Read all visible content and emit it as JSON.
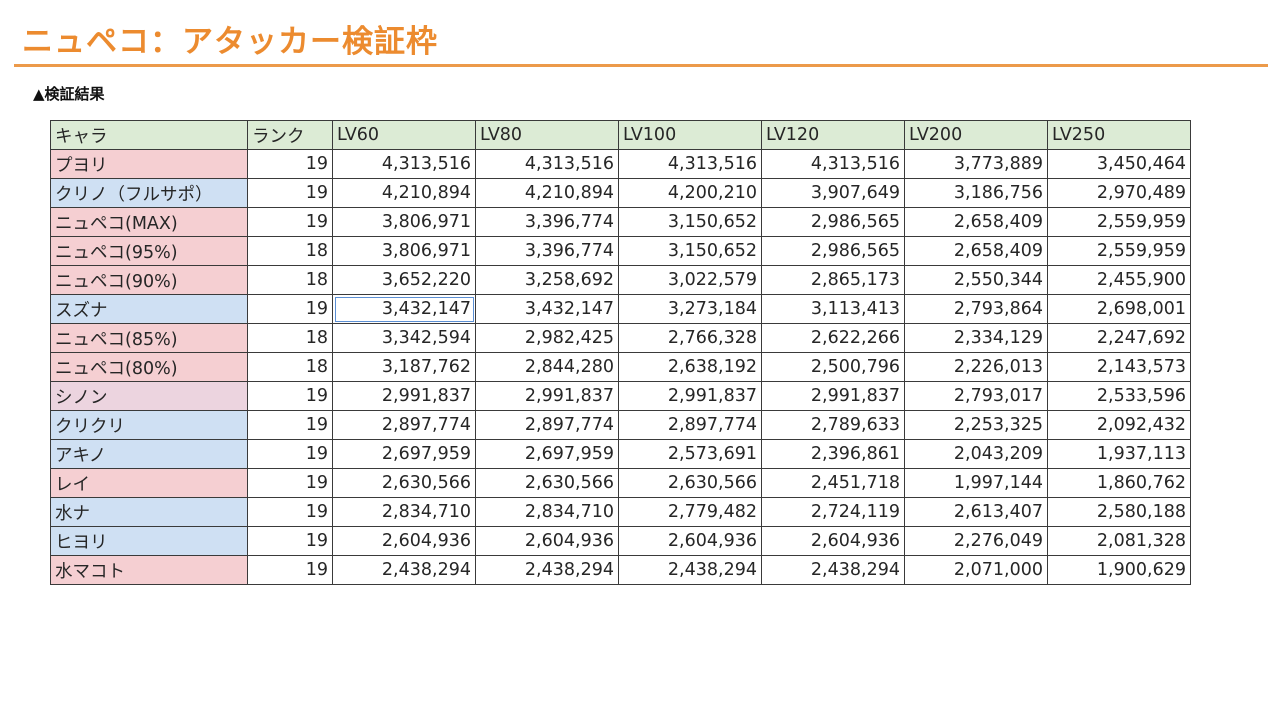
{
  "page": {
    "title": "ニュペコ：アタッカー検証枠",
    "section_label": "▲検証結果"
  },
  "colors": {
    "title": "#ec8b2f",
    "header_bg": "#dcebd5",
    "pink": "#f5cfd2",
    "blue": "#cfe0f3",
    "mauve": "#ecd4df"
  },
  "table": {
    "columns": [
      "キャラ",
      "ランク",
      "LV60",
      "LV80",
      "LV100",
      "LV120",
      "LV200",
      "LV250"
    ],
    "rows": [
      {
        "name": "プヨリ",
        "color": "pink",
        "cells": [
          "19",
          "4,313,516",
          "4,313,516",
          "4,313,516",
          "4,313,516",
          "3,773,889",
          "3,450,464"
        ]
      },
      {
        "name": "クリノ（フルサポ）",
        "color": "blue",
        "cells": [
          "19",
          "4,210,894",
          "4,210,894",
          "4,200,210",
          "3,907,649",
          "3,186,756",
          "2,970,489"
        ]
      },
      {
        "name": "ニュペコ(MAX)",
        "color": "pink",
        "cells": [
          "19",
          "3,806,971",
          "3,396,774",
          "3,150,652",
          "2,986,565",
          "2,658,409",
          "2,559,959"
        ]
      },
      {
        "name": "ニュペコ(95%)",
        "color": "pink",
        "cells": [
          "18",
          "3,806,971",
          "3,396,774",
          "3,150,652",
          "2,986,565",
          "2,658,409",
          "2,559,959"
        ]
      },
      {
        "name": "ニュペコ(90%)",
        "color": "pink",
        "cells": [
          "18",
          "3,652,220",
          "3,258,692",
          "3,022,579",
          "2,865,173",
          "2,550,344",
          "2,455,900"
        ]
      },
      {
        "name": "スズナ",
        "color": "blue",
        "cells": [
          "19",
          "3,432,147",
          "3,432,147",
          "3,273,184",
          "3,113,413",
          "2,793,864",
          "2,698,001"
        ]
      },
      {
        "name": "ニュペコ(85%)",
        "color": "pink",
        "cells": [
          "18",
          "3,342,594",
          "2,982,425",
          "2,766,328",
          "2,622,266",
          "2,334,129",
          "2,247,692"
        ]
      },
      {
        "name": "ニュペコ(80%)",
        "color": "pink",
        "cells": [
          "18",
          "3,187,762",
          "2,844,280",
          "2,638,192",
          "2,500,796",
          "2,226,013",
          "2,143,573"
        ]
      },
      {
        "name": "シノン",
        "color": "mauve",
        "cells": [
          "19",
          "2,991,837",
          "2,991,837",
          "2,991,837",
          "2,991,837",
          "2,793,017",
          "2,533,596"
        ]
      },
      {
        "name": "クリクリ",
        "color": "blue",
        "cells": [
          "19",
          "2,897,774",
          "2,897,774",
          "2,897,774",
          "2,789,633",
          "2,253,325",
          "2,092,432"
        ]
      },
      {
        "name": "アキノ",
        "color": "blue",
        "cells": [
          "19",
          "2,697,959",
          "2,697,959",
          "2,573,691",
          "2,396,861",
          "2,043,209",
          "1,937,113"
        ]
      },
      {
        "name": "レイ",
        "color": "pink",
        "cells": [
          "19",
          "2,630,566",
          "2,630,566",
          "2,630,566",
          "2,451,718",
          "1,997,144",
          "1,860,762"
        ]
      },
      {
        "name": "水ナ",
        "color": "blue",
        "cells": [
          "19",
          "2,834,710",
          "2,834,710",
          "2,779,482",
          "2,724,119",
          "2,613,407",
          "2,580,188"
        ]
      },
      {
        "name": "ヒヨリ",
        "color": "blue",
        "cells": [
          "19",
          "2,604,936",
          "2,604,936",
          "2,604,936",
          "2,604,936",
          "2,276,049",
          "2,081,328"
        ]
      },
      {
        "name": "水マコト",
        "color": "pink",
        "cells": [
          "19",
          "2,438,294",
          "2,438,294",
          "2,438,294",
          "2,438,294",
          "2,071,000",
          "1,900,629"
        ]
      }
    ],
    "selected_cell": {
      "row": 5,
      "col": 1
    }
  }
}
